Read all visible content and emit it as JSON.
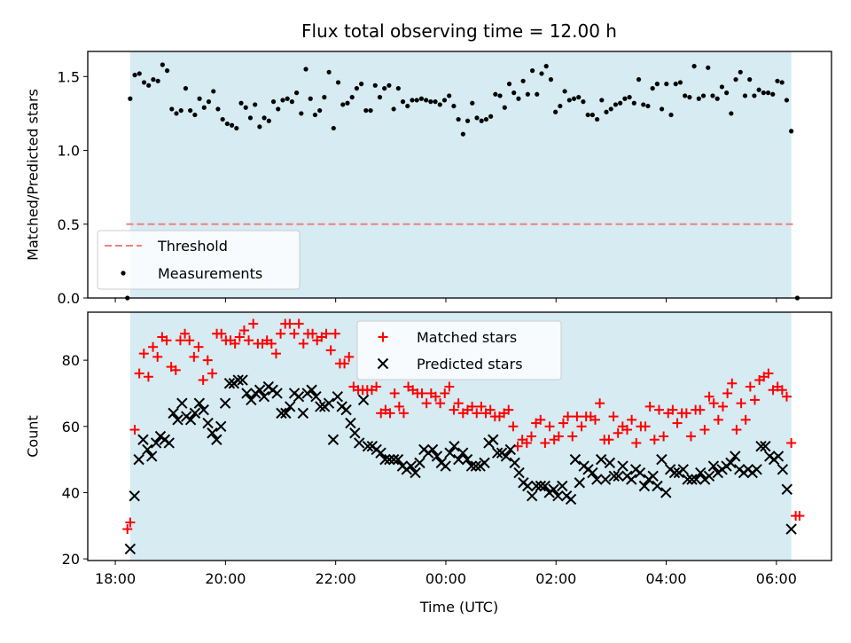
{
  "chart_data": {
    "title": "Flux total observing time = 12.00 h",
    "xlabel": "Time (UTC)",
    "x_unit": "hours since 18:00 UTC",
    "xlim": [
      -0.5,
      13.0
    ],
    "x_ticks": [
      {
        "value": 0,
        "label": "18:00"
      },
      {
        "value": 2,
        "label": "20:00"
      },
      {
        "value": 4,
        "label": "22:00"
      },
      {
        "value": 6,
        "label": "00:00"
      },
      {
        "value": 8,
        "label": "02:00"
      },
      {
        "value": 10,
        "label": "04:00"
      },
      {
        "value": 12,
        "label": "06:00"
      }
    ],
    "shaded_span": {
      "x_start": 0.27,
      "x_end": 12.27,
      "color": "#add8e6"
    },
    "panels": [
      {
        "id": "ratio",
        "type": "scatter",
        "ylabel": "Matched/Predicted stars",
        "ylim": [
          0.0,
          1.67
        ],
        "y_ticks": [
          {
            "value": 0.0,
            "label": "0.0"
          },
          {
            "value": 0.5,
            "label": "0.5"
          },
          {
            "value": 1.0,
            "label": "1.0"
          },
          {
            "value": 1.5,
            "label": "1.5"
          }
        ],
        "legend_position": "lower-left",
        "threshold": {
          "name": "Threshold",
          "value": 0.5,
          "x_range": [
            0.2,
            12.3
          ],
          "color": "#f08080"
        },
        "measurements": {
          "name": "Measurements",
          "color": "#000000",
          "values": [
            0.0,
            1.35,
            1.51,
            1.52,
            1.46,
            1.44,
            1.48,
            1.47,
            1.58,
            1.54,
            1.28,
            1.25,
            1.27,
            1.42,
            1.27,
            1.24,
            1.35,
            1.29,
            1.33,
            1.4,
            1.28,
            1.21,
            1.18,
            1.17,
            1.15,
            1.32,
            1.29,
            1.22,
            1.31,
            1.16,
            1.22,
            1.2,
            1.33,
            1.28,
            1.34,
            1.35,
            1.33,
            1.39,
            1.25,
            1.55,
            1.35,
            1.24,
            1.27,
            1.36,
            1.53,
            1.15,
            1.46,
            1.31,
            1.32,
            1.36,
            1.42,
            1.45,
            1.27,
            1.27,
            1.44,
            1.36,
            1.42,
            1.44,
            1.28,
            1.42,
            1.33,
            1.3,
            1.34,
            1.34,
            1.35,
            1.34,
            1.33,
            1.33,
            1.31,
            1.34,
            1.37,
            1.3,
            1.21,
            1.11,
            1.2,
            1.32,
            1.22,
            1.2,
            1.21,
            1.23,
            1.38,
            1.37,
            1.29,
            1.45,
            1.39,
            1.35,
            1.47,
            1.38,
            1.54,
            1.38,
            1.52,
            1.57,
            1.48,
            1.26,
            1.3,
            1.4,
            1.34,
            1.35,
            1.36,
            1.33,
            1.24,
            1.24,
            1.21,
            1.34,
            1.26,
            1.28,
            1.31,
            1.32,
            1.35,
            1.36,
            1.32,
            1.48,
            1.31,
            1.3,
            1.42,
            1.45,
            1.28,
            1.45,
            1.24,
            1.45,
            1.46,
            1.37,
            1.36,
            1.57,
            1.35,
            1.37,
            1.56,
            1.37,
            1.35,
            1.43,
            1.39,
            1.25,
            1.48,
            1.53,
            1.37,
            1.48,
            1.37,
            1.41,
            1.39,
            1.39,
            1.38,
            1.47,
            1.46,
            1.34,
            1.13,
            0.0
          ]
        }
      },
      {
        "id": "counts",
        "type": "scatter",
        "ylabel": "Count",
        "ylim": [
          19.5,
          94.5
        ],
        "y_ticks": [
          {
            "value": 20,
            "label": "20"
          },
          {
            "value": 40,
            "label": "40"
          },
          {
            "value": 60,
            "label": "60"
          },
          {
            "value": 80,
            "label": "80"
          }
        ],
        "legend_position": "upper-center",
        "series": [
          {
            "name": "Matched stars",
            "marker": "plus",
            "color": "#ff0000",
            "values": [
              29,
              31,
              59,
              76,
              82,
              75,
              84,
              81,
              87,
              86,
              78,
              77,
              86,
              88,
              86,
              81,
              84,
              74,
              80,
              76,
              88,
              88,
              86,
              86,
              85,
              87,
              89,
              86,
              91,
              85,
              85,
              86,
              85,
              82,
              88,
              91,
              91,
              88,
              91,
              85,
              88,
              88,
              86,
              87,
              88,
              83,
              88,
              79,
              79,
              81,
              72,
              71,
              71,
              71,
              71,
              72,
              64,
              65,
              64,
              70,
              66,
              64,
              72,
              71,
              70,
              70,
              67,
              70,
              69,
              67,
              70,
              72,
              65,
              67,
              64,
              65,
              66,
              64,
              66,
              64,
              65,
              63,
              63,
              64,
              65,
              60,
              54,
              56,
              55,
              57,
              61,
              62,
              55,
              60,
              56,
              57,
              61,
              63,
              57,
              63,
              60,
              63,
              63,
              62,
              67,
              56,
              56,
              63,
              58,
              60,
              59,
              62,
              55,
              60,
              60,
              66,
              56,
              65,
              57,
              64,
              65,
              61,
              64,
              64,
              57,
              65,
              65,
              59,
              69,
              67,
              62,
              66,
              70,
              73,
              59,
              67,
              62,
              72,
              68,
              74,
              75,
              76,
              71,
              72,
              71,
              69,
              55,
              33,
              33
            ]
          },
          {
            "name": "Predicted stars",
            "marker": "x",
            "color": "#000000",
            "values": [
              23,
              39,
              50,
              56,
              53,
              51,
              55,
              57,
              56,
              55,
              64,
              62,
              67,
              63,
              62,
              64,
              67,
              65,
              61,
              58,
              56,
              60,
              67,
              73,
              73,
              74,
              74,
              70,
              68,
              70,
              71,
              69,
              72,
              71,
              70,
              64,
              64,
              66,
              70,
              69,
              64,
              70,
              71,
              69,
              66,
              66,
              67,
              56,
              69,
              66,
              65,
              61,
              58,
              55,
              68,
              54,
              54,
              53,
              52,
              50,
              50,
              50,
              50,
              48,
              47,
              48,
              46,
              49,
              53,
              52,
              53,
              51,
              49,
              48,
              52,
              54,
              50,
              52,
              50,
              48,
              48,
              48,
              49,
              55,
              56,
              52,
              52,
              51,
              53,
              49,
              46,
              43,
              42,
              39,
              42,
              42,
              42,
              40,
              41,
              39,
              42,
              39,
              38,
              50,
              43,
              48,
              47,
              46,
              44,
              50,
              44,
              49,
              45,
              45,
              48,
              45,
              44,
              47,
              46,
              42,
              44,
              45,
              42,
              50,
              40,
              47,
              46,
              46,
              47,
              44,
              44,
              44,
              46,
              44,
              45,
              48,
              46,
              47,
              48,
              49,
              51,
              47,
              46,
              47,
              46,
              47,
              54,
              54,
              51,
              50,
              51,
              47,
              41,
              29
            ]
          }
        ]
      }
    ]
  }
}
